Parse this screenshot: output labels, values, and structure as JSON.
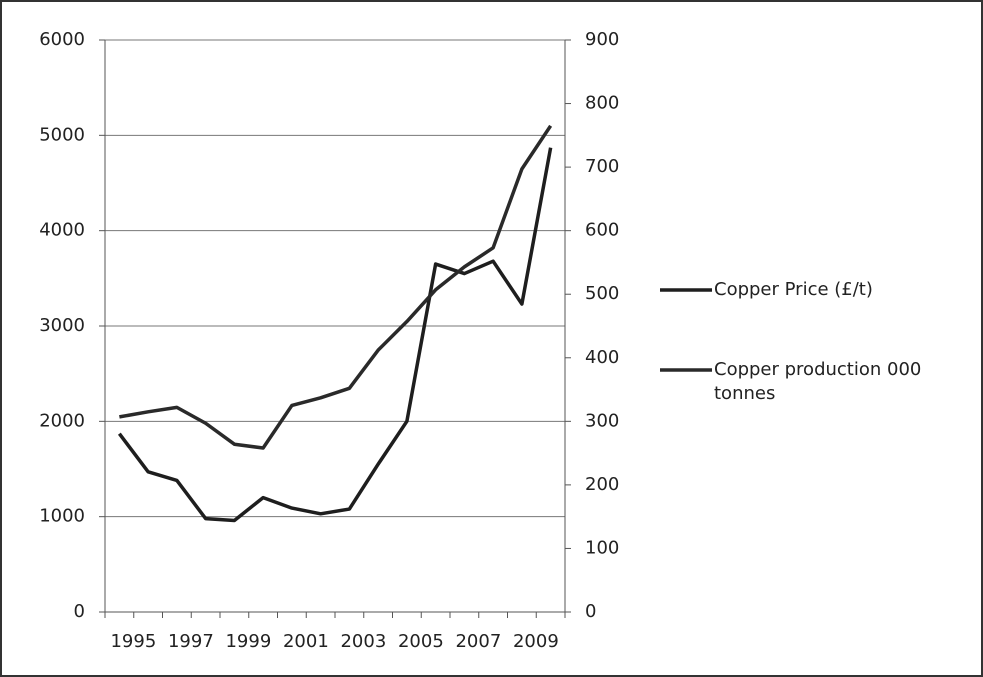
{
  "chart_data": {
    "type": "line",
    "categories": [
      "1995",
      null,
      "1997",
      null,
      "1999",
      null,
      "2001",
      null,
      "2003",
      null,
      "2005",
      null,
      "2007",
      null,
      "2009",
      null
    ],
    "series": [
      {
        "name": "Copper Price (£/t)",
        "color": "#1e1e1e",
        "values": [
          1870,
          1470,
          1380,
          980,
          960,
          1200,
          1090,
          1030,
          1080,
          1550,
          2000,
          3650,
          3550,
          3680,
          3230,
          4870
        ]
      },
      {
        "name": "Copper production 000 tonnes",
        "color": "#2a2a2a",
        "axis": "y2",
        "values": [
          307,
          315,
          322,
          297,
          264,
          258,
          325,
          337,
          352,
          412,
          457,
          507,
          543,
          573,
          697,
          765
        ]
      }
    ],
    "ylim": [
      0,
      6000
    ],
    "yticks": [
      0,
      1000,
      2000,
      3000,
      4000,
      5000,
      6000
    ],
    "y2lim": [
      0,
      900
    ],
    "y2ticks": [
      0,
      100,
      200,
      300,
      400,
      500,
      600,
      700,
      800,
      900
    ],
    "grid": true,
    "legend": "right"
  }
}
